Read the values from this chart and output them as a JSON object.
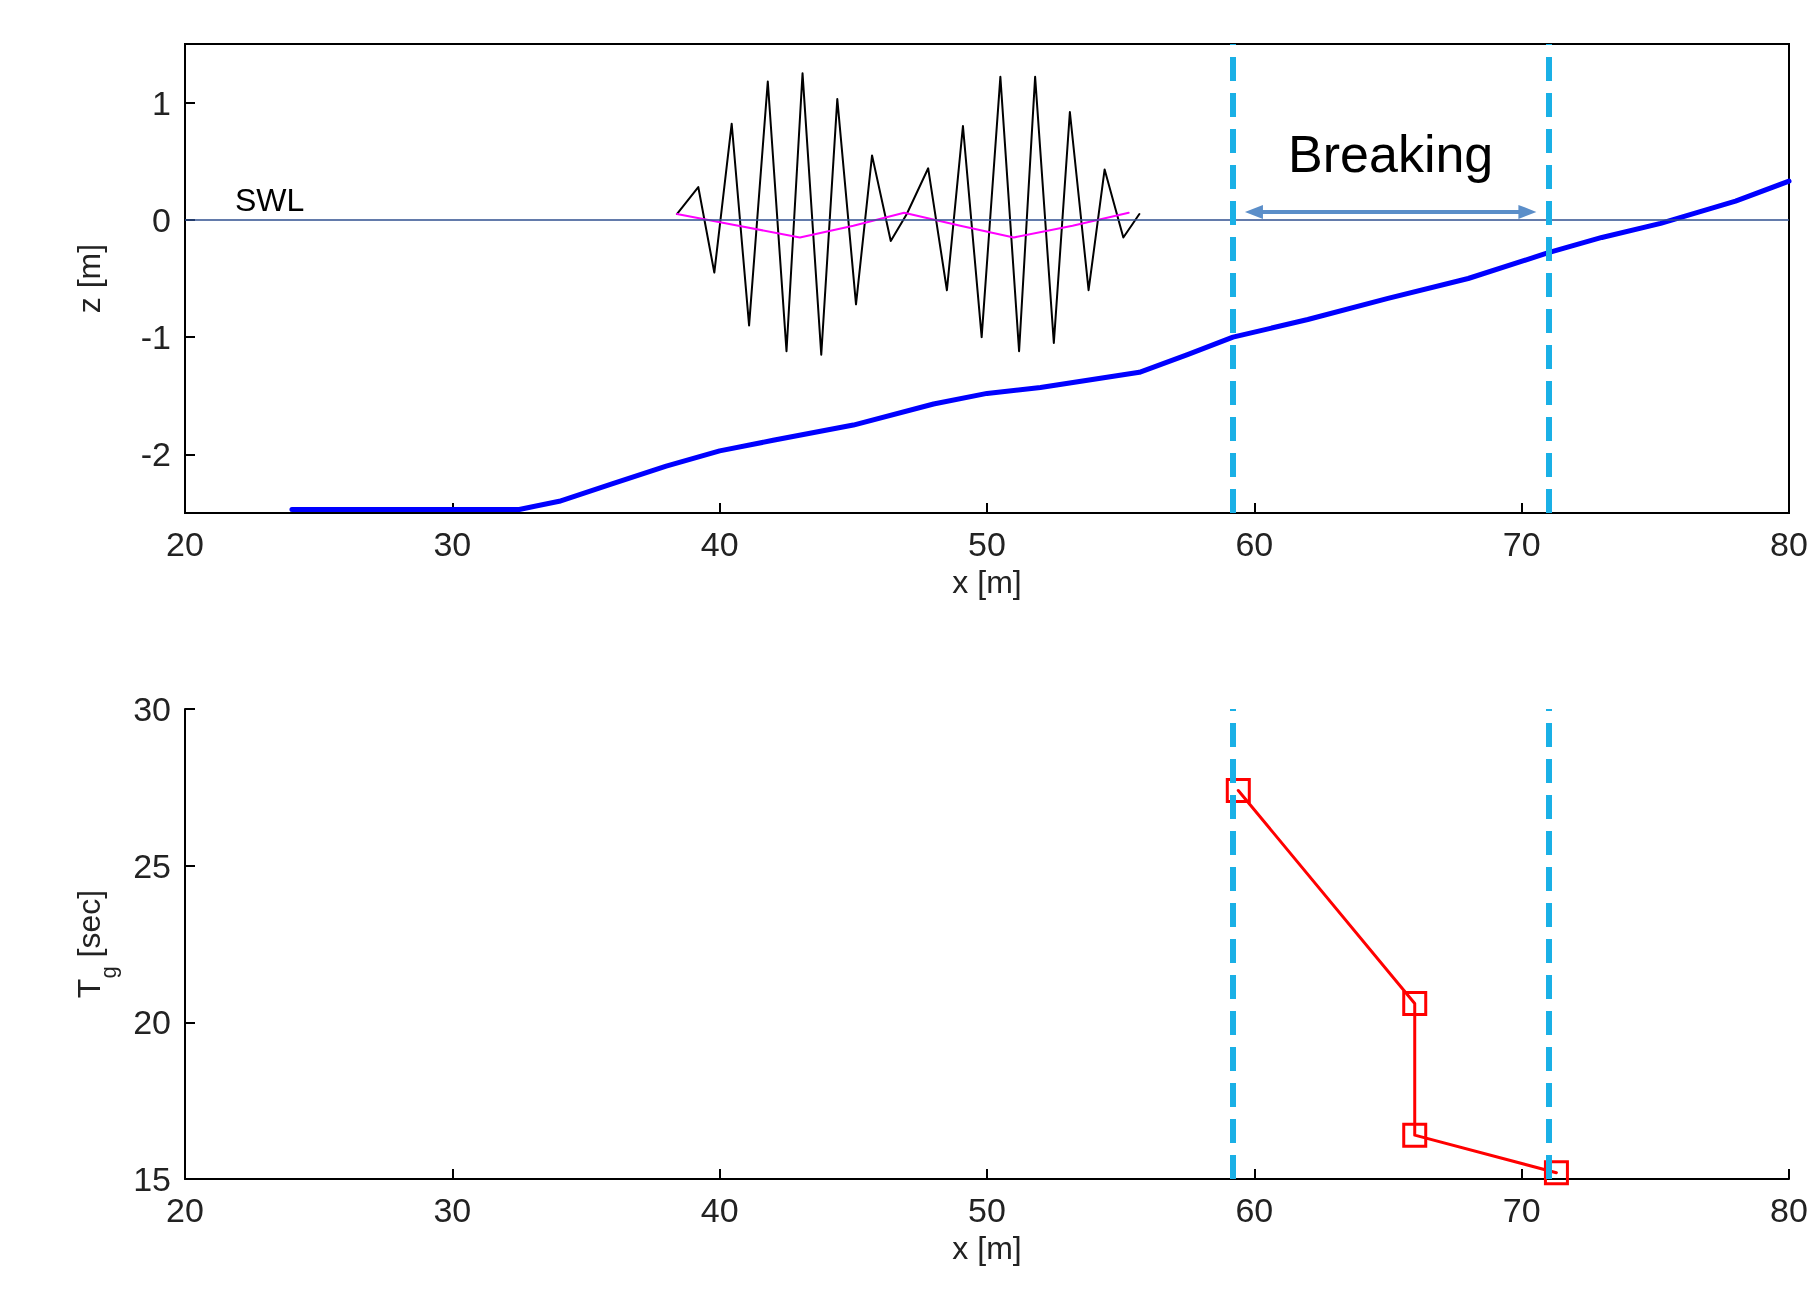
{
  "chart_data": [
    {
      "type": "line",
      "xlabel": "x [m]",
      "ylabel": "z [m]",
      "xlim": [
        20,
        80
      ],
      "xticks": [
        20,
        30,
        40,
        50,
        60,
        70,
        80
      ],
      "ylim": [
        -2.5,
        1.5
      ],
      "yticks": [
        -2,
        -1,
        0,
        1
      ],
      "marker": "none",
      "line_style": "solid",
      "series": [
        {
          "color": "#0000ff",
          "x": [
            24,
            27,
            30,
            32.5,
            34,
            36,
            38,
            40,
            42,
            45,
            48,
            50,
            52,
            55.7,
            57.5,
            59.2,
            62,
            65,
            68,
            71,
            73,
            75.2,
            78,
            80
          ],
          "values": [
            -2.47,
            -2.47,
            -2.47,
            -2.47,
            -2.4,
            -2.25,
            -2.1,
            -1.97,
            -1.88,
            -1.75,
            -1.57,
            -1.48,
            -1.43,
            -1.3,
            -1.15,
            -1.0,
            -0.85,
            -0.67,
            -0.5,
            -0.28,
            -0.15,
            -0.03,
            0.16,
            0.33
          ]
        },
        {
          "color": "#000000",
          "x": [
            38.4,
            39.2,
            39.8,
            40.45,
            41.1,
            41.8,
            42.5,
            43.1,
            43.8,
            44.4,
            45.1,
            45.7,
            46.4,
            47.0,
            47.8,
            48.5,
            49.1,
            49.8,
            50.5,
            51.2,
            51.8,
            52.5,
            53.1,
            53.8,
            54.4,
            55.1,
            55.7
          ],
          "values": [
            0.05,
            0.28,
            -0.45,
            0.82,
            -0.9,
            1.18,
            -1.12,
            1.25,
            -1.15,
            1.03,
            -0.72,
            0.55,
            -0.18,
            0.05,
            0.44,
            -0.6,
            0.8,
            -1.0,
            1.22,
            -1.12,
            1.22,
            -1.05,
            0.92,
            -0.6,
            0.43,
            -0.15,
            0.05
          ]
        },
        {
          "color": "#ff00ff",
          "x": [
            38.4,
            40.7,
            43.0,
            45.0,
            46.9,
            49.0,
            51.0,
            53.2,
            55.3
          ],
          "values": [
            0.05,
            -0.05,
            -0.15,
            -0.05,
            0.06,
            -0.05,
            -0.15,
            -0.05,
            0.06
          ]
        }
      ],
      "ref_lines": [
        {
          "axis": "y",
          "value": 0,
          "label": "SWL",
          "color": "#2f4f8f",
          "line_style": "solid"
        },
        {
          "axis": "x",
          "value": 59.2,
          "label": null,
          "color": "#1ab0e6",
          "line_style": "dashed"
        },
        {
          "axis": "x",
          "value": 71.0,
          "label": null,
          "color": "#1ab0e6",
          "line_style": "dashed"
        }
      ],
      "annotations": [
        "Breaking"
      ]
    },
    {
      "type": "line",
      "xlabel": "x [m]",
      "ylabel": "T$_{g}$ [sec]",
      "xlim": [
        20,
        80
      ],
      "xticks": [
        20,
        30,
        40,
        50,
        60,
        70,
        80
      ],
      "ylim": [
        15,
        30
      ],
      "yticks": [
        15,
        20,
        25,
        30
      ],
      "marker": "square",
      "line_style": "solid",
      "series": [
        {
          "color": "#ff0000",
          "x": [
            59.4,
            66.0,
            66.0,
            71.3
          ],
          "values": [
            27.4,
            20.6,
            16.4,
            15.2
          ]
        }
      ],
      "ref_lines": [
        {
          "axis": "x",
          "value": 59.2,
          "label": null,
          "color": "#1ab0e6",
          "line_style": "dashed"
        },
        {
          "axis": "x",
          "value": 71.0,
          "label": null,
          "color": "#1ab0e6",
          "line_style": "dashed"
        }
      ]
    }
  ]
}
